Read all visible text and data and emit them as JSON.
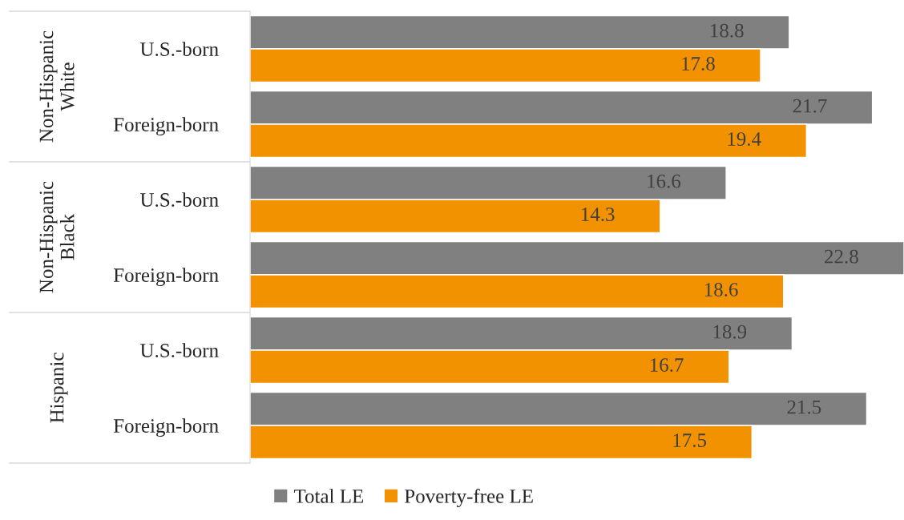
{
  "chart_data": {
    "type": "bar",
    "orientation": "horizontal",
    "data_labels": true,
    "legend": "bottom",
    "categories": [
      "U.S.-born",
      "Foreign-born",
      "U.S.-born",
      "Foreign-born",
      "U.S.-born",
      "Foreign-born"
    ],
    "annotations": [
      "Non-Hispanic\nWhite",
      "Non-Hispanic\nBlack",
      "Hispanic"
    ],
    "series": [
      {
        "name": "Total LE",
        "color": "#808080",
        "values": [
          18.8,
          21.7,
          16.6,
          22.8,
          18.9,
          21.5
        ]
      },
      {
        "name": "Poverty-free LE",
        "color": "#f39200",
        "values": [
          17.8,
          19.4,
          14.3,
          18.6,
          16.7,
          17.5
        ]
      }
    ]
  }
}
